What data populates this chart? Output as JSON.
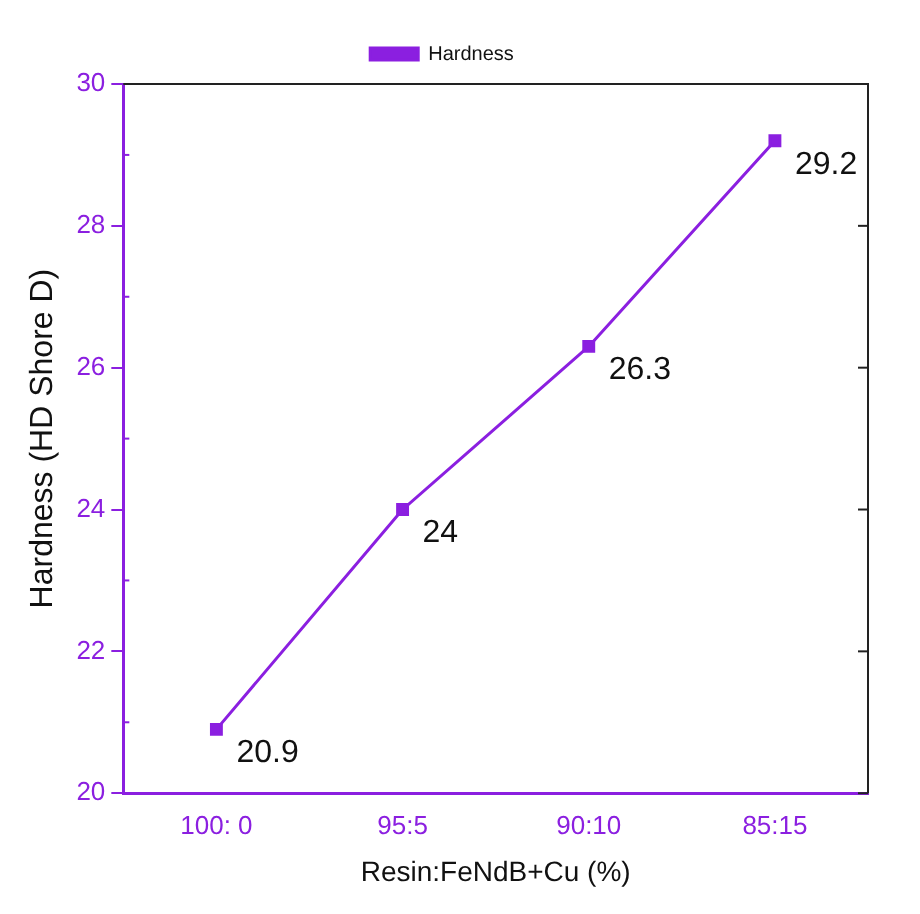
{
  "chart_data": {
    "type": "line",
    "xlabel": "Resin:FeNdB+Cu (%)",
    "ylabel": "Hardness (HD Shore D)",
    "categories": [
      "100: 0",
      "95:5",
      "90:10",
      "85:15"
    ],
    "series": [
      {
        "name": "Hardness",
        "color": "#8b1fe0",
        "values": [
          20.9,
          24,
          26.3,
          29.2
        ]
      }
    ],
    "ylim": [
      20,
      30
    ],
    "yticks": [
      20,
      22,
      24,
      26,
      28,
      30
    ],
    "legend": "top",
    "marker": "square",
    "line_style": "solid",
    "data_labels": true,
    "grid": false
  }
}
